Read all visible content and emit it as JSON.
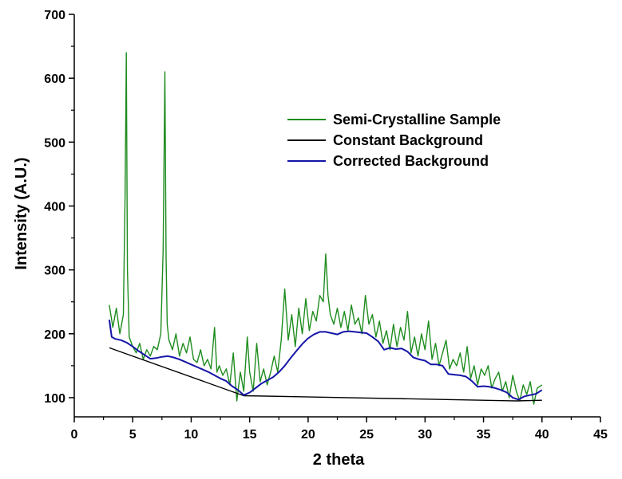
{
  "chart_data": {
    "type": "line",
    "title": "",
    "xlabel": "2 theta",
    "ylabel": "Intensity (A.U.)",
    "xlim": [
      0,
      45
    ],
    "ylim": [
      70,
      700
    ],
    "x_ticks": [
      0,
      5,
      10,
      15,
      20,
      25,
      30,
      35,
      40,
      45
    ],
    "y_ticks": [
      100,
      200,
      300,
      400,
      500,
      600,
      700
    ],
    "grid": false,
    "legend_position": "center-right",
    "series": [
      {
        "name": "Semi-Crystalline Sample",
        "color": "#1e8c1e",
        "x": [
          3.0,
          3.3,
          3.6,
          3.9,
          4.2,
          4.35,
          4.45,
          4.55,
          4.7,
          5.0,
          5.3,
          5.6,
          5.9,
          6.2,
          6.5,
          6.8,
          7.1,
          7.4,
          7.6,
          7.75,
          7.85,
          7.95,
          8.1,
          8.4,
          8.7,
          9.0,
          9.3,
          9.6,
          9.9,
          10.2,
          10.5,
          10.8,
          11.1,
          11.4,
          11.7,
          12.0,
          12.2,
          12.4,
          12.7,
          13.0,
          13.3,
          13.6,
          13.9,
          14.2,
          14.5,
          14.8,
          15.0,
          15.3,
          15.6,
          15.9,
          16.2,
          16.5,
          16.8,
          17.1,
          17.4,
          17.7,
          18.0,
          18.3,
          18.6,
          18.9,
          19.2,
          19.5,
          19.8,
          20.1,
          20.4,
          20.7,
          21.0,
          21.3,
          21.5,
          21.7,
          21.9,
          22.2,
          22.5,
          22.8,
          23.1,
          23.4,
          23.7,
          24.0,
          24.3,
          24.6,
          24.9,
          25.2,
          25.5,
          25.8,
          26.1,
          26.4,
          26.7,
          27.0,
          27.3,
          27.6,
          27.9,
          28.2,
          28.5,
          28.8,
          29.1,
          29.4,
          29.7,
          30.0,
          30.3,
          30.6,
          30.9,
          31.2,
          31.5,
          31.8,
          32.1,
          32.4,
          32.7,
          33.0,
          33.3,
          33.6,
          33.9,
          34.2,
          34.5,
          34.8,
          35.1,
          35.4,
          35.7,
          36.0,
          36.3,
          36.6,
          36.9,
          37.2,
          37.5,
          37.8,
          38.1,
          38.4,
          38.7,
          39.0,
          39.3,
          39.6,
          40.0
        ],
        "y": [
          245,
          210,
          240,
          200,
          230,
          420,
          640,
          300,
          195,
          180,
          170,
          185,
          160,
          175,
          165,
          180,
          175,
          200,
          330,
          610,
          320,
          215,
          190,
          175,
          200,
          165,
          185,
          170,
          195,
          160,
          155,
          175,
          150,
          160,
          145,
          210,
          140,
          150,
          135,
          145,
          120,
          170,
          95,
          140,
          110,
          195,
          140,
          110,
          185,
          125,
          145,
          120,
          140,
          165,
          140,
          190,
          270,
          190,
          230,
          180,
          240,
          200,
          255,
          205,
          235,
          220,
          260,
          250,
          325,
          260,
          230,
          215,
          240,
          210,
          235,
          205,
          245,
          215,
          225,
          200,
          260,
          215,
          230,
          195,
          220,
          185,
          205,
          175,
          215,
          180,
          210,
          190,
          235,
          170,
          195,
          165,
          200,
          175,
          220,
          160,
          185,
          150,
          170,
          190,
          145,
          160,
          150,
          170,
          140,
          180,
          130,
          150,
          120,
          145,
          135,
          150,
          115,
          130,
          140,
          110,
          125,
          100,
          135,
          110,
          95,
          120,
          105,
          125,
          90,
          115,
          120
        ]
      },
      {
        "name": "Constant Background",
        "color": "#000000",
        "x": [
          3.0,
          14.5,
          37.8,
          40.0
        ],
        "y": [
          178,
          103,
          95,
          96
        ]
      },
      {
        "name": "Corrected Background",
        "color": "#1515a8",
        "x": [
          3.0,
          3.2,
          3.5,
          4.0,
          4.5,
          5.0,
          5.5,
          6.0,
          6.5,
          7.0,
          7.5,
          8.0,
          8.5,
          9.0,
          9.5,
          10.0,
          10.5,
          11.0,
          11.5,
          12.0,
          12.5,
          13.0,
          13.5,
          14.0,
          14.5,
          15.0,
          15.5,
          16.0,
          16.5,
          17.0,
          17.5,
          18.0,
          18.5,
          19.0,
          19.5,
          20.0,
          20.5,
          21.0,
          21.5,
          22.0,
          22.5,
          23.0,
          23.5,
          24.0,
          24.5,
          25.0,
          25.5,
          26.0,
          26.5,
          27.0,
          27.5,
          28.0,
          28.5,
          29.0,
          29.5,
          30.0,
          30.5,
          31.0,
          31.5,
          32.0,
          32.5,
          33.0,
          33.5,
          34.0,
          34.5,
          35.0,
          35.5,
          36.0,
          36.5,
          37.0,
          37.5,
          38.0,
          38.5,
          39.0,
          39.5,
          40.0
        ],
        "y": [
          222,
          195,
          192,
          190,
          186,
          180,
          173,
          167,
          161,
          162,
          164,
          165,
          163,
          160,
          156,
          152,
          148,
          144,
          140,
          135,
          130,
          126,
          118,
          112,
          104,
          108,
          115,
          122,
          127,
          132,
          140,
          150,
          162,
          173,
          184,
          193,
          199,
          203,
          203,
          201,
          199,
          203,
          204,
          203,
          202,
          201,
          195,
          188,
          175,
          178,
          176,
          177,
          172,
          163,
          160,
          158,
          152,
          152,
          150,
          137,
          136,
          135,
          133,
          126,
          117,
          118,
          117,
          115,
          112,
          108,
          100,
          97,
          102,
          104,
          106,
          112
        ]
      }
    ]
  }
}
